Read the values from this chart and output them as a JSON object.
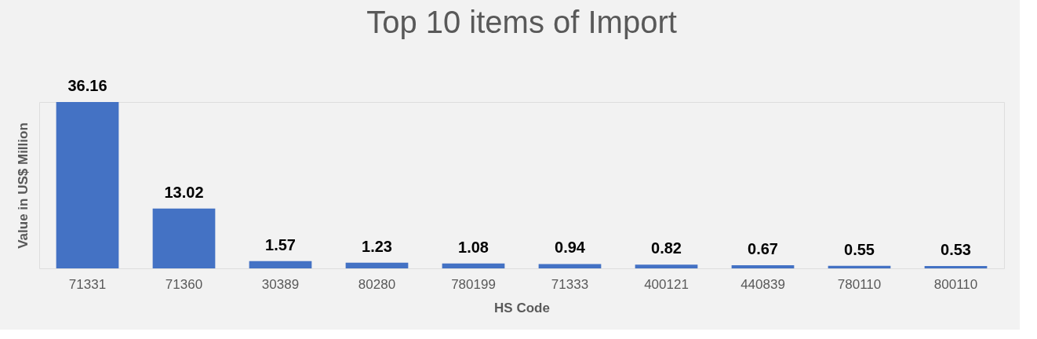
{
  "chart_data": {
    "type": "bar",
    "title": "Top 10 items of Import",
    "xlabel": "HS Code",
    "ylabel": "Value in US$ Million",
    "categories": [
      "71331",
      "71360",
      "30389",
      "80280",
      "780199",
      "71333",
      "400121",
      "440839",
      "780110",
      "800110"
    ],
    "values": [
      36.16,
      13.02,
      1.57,
      1.23,
      1.08,
      0.94,
      0.82,
      0.67,
      0.55,
      0.53
    ],
    "color": "#4472c4",
    "data_labels": true,
    "tick_labels": "x",
    "grid": false
  }
}
